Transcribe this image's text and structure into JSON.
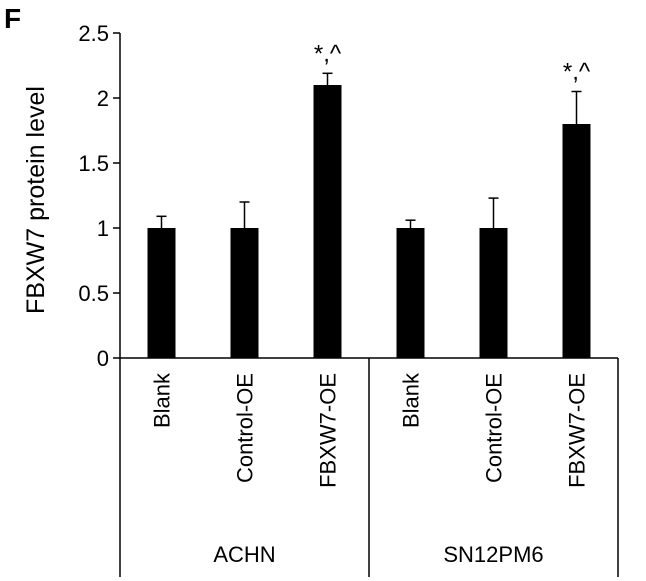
{
  "panel_label": "F",
  "chart_data": {
    "type": "bar",
    "title": "",
    "xlabel": "",
    "ylabel": "FBXW7 protein level",
    "ylim": [
      0,
      2.5
    ],
    "yticks": [
      "0",
      "0.5",
      "1",
      "1.5",
      "2",
      "2.5"
    ],
    "categories": [
      "Blank",
      "Control-OE",
      "FBXW7-OE",
      "Blank",
      "Control-OE",
      "FBXW7-OE"
    ],
    "values": [
      1.0,
      1.0,
      2.1,
      1.0,
      1.0,
      1.8
    ],
    "errors": [
      0.09,
      0.2,
      0.09,
      0.06,
      0.23,
      0.25
    ],
    "annotations": [
      "",
      "",
      "*,^",
      "",
      "",
      "*,^"
    ],
    "groups": [
      {
        "label": "ACHN",
        "categories": [
          0,
          1,
          2
        ]
      },
      {
        "label": "SN12PM6",
        "categories": [
          3,
          4,
          5
        ]
      }
    ],
    "bar_color": "#000000",
    "grid": false,
    "legend": "none"
  }
}
